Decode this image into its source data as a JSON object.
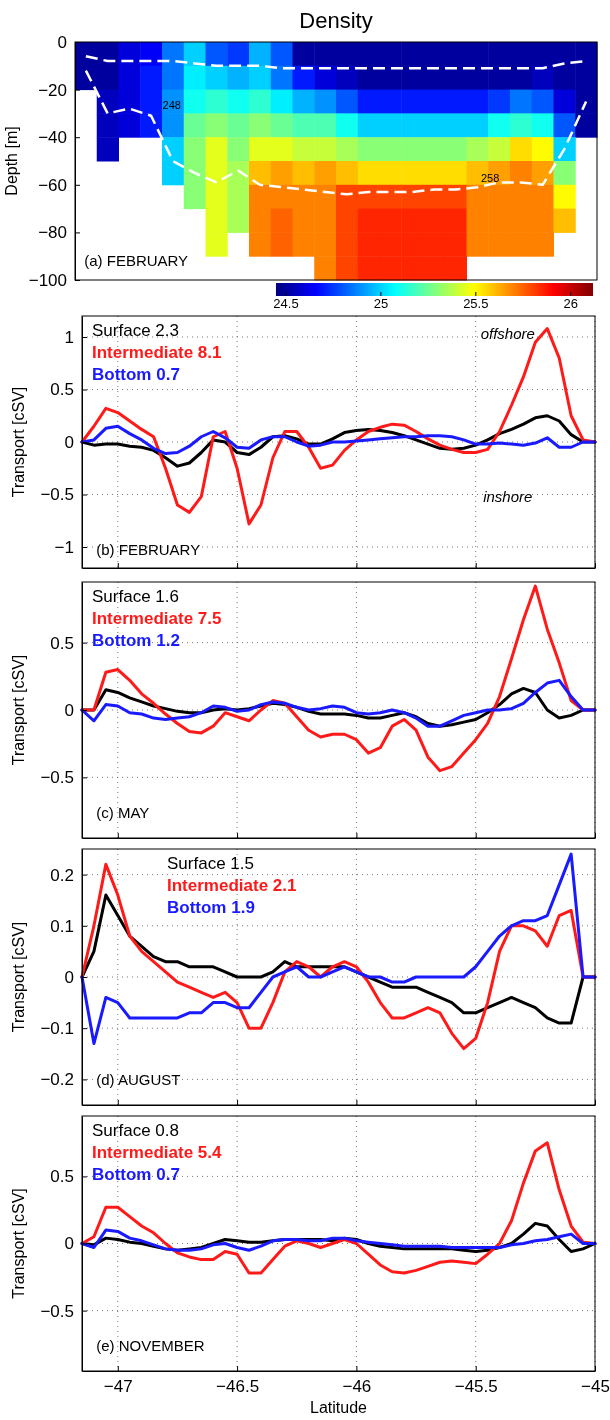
{
  "chart_data": [
    {
      "type": "heatmap",
      "title": "Density",
      "ylabel": "Depth [m]",
      "ylim": [
        -100,
        0
      ],
      "yticks": [
        -100,
        -80,
        -60,
        -40,
        -20,
        0
      ],
      "tick_labels": "y",
      "clim": [
        24.45,
        26.12
      ],
      "cticks": [
        24.5,
        25,
        25.5,
        26
      ],
      "categories": [
        null,
        null,
        null,
        null,
        null,
        null,
        null,
        null,
        null,
        null,
        null,
        null,
        null,
        null,
        null,
        null,
        null,
        null,
        null,
        null,
        null,
        null,
        null,
        null
      ],
      "cells": [
        [
          24.5,
          24.5,
          24.6,
          24.65,
          24.85,
          25.0,
          24.8,
          24.75,
          24.95,
          24.8,
          24.5,
          24.5,
          24.5,
          24.5,
          24.5,
          24.5,
          24.5,
          24.5,
          24.5,
          24.5,
          24.5,
          24.5,
          24.5,
          24.5
        ],
        [
          24.5,
          24.5,
          24.6,
          24.7,
          24.85,
          25.05,
          25.0,
          24.95,
          25.0,
          24.85,
          24.7,
          24.6,
          24.55,
          24.5,
          24.5,
          24.5,
          24.5,
          24.5,
          24.5,
          24.5,
          24.5,
          24.55,
          24.5,
          24.5
        ],
        [
          null,
          24.55,
          24.6,
          24.7,
          24.9,
          25.1,
          25.15,
          25.1,
          25.15,
          25.05,
          24.95,
          24.9,
          24.8,
          24.7,
          24.7,
          24.7,
          24.7,
          24.7,
          24.7,
          24.75,
          24.85,
          24.8,
          24.6,
          24.5
        ],
        [
          null,
          24.55,
          24.6,
          24.7,
          24.9,
          25.25,
          25.3,
          25.25,
          25.3,
          25.25,
          25.2,
          25.2,
          25.1,
          25.0,
          25.0,
          25.0,
          25.0,
          25.0,
          25.0,
          25.1,
          25.15,
          25.1,
          24.8,
          24.5
        ],
        [
          null,
          24.55,
          null,
          null,
          25.0,
          25.3,
          25.45,
          25.3,
          25.45,
          25.45,
          25.4,
          25.4,
          25.35,
          25.3,
          25.3,
          25.3,
          25.3,
          25.3,
          25.35,
          25.4,
          25.55,
          25.5,
          25.0,
          null
        ],
        [
          null,
          null,
          null,
          null,
          25.0,
          25.3,
          25.45,
          25.35,
          25.6,
          25.65,
          25.6,
          25.65,
          25.6,
          25.55,
          25.55,
          25.55,
          25.55,
          25.55,
          25.6,
          25.65,
          25.7,
          25.65,
          25.3,
          null
        ],
        [
          null,
          null,
          null,
          null,
          null,
          25.3,
          25.45,
          25.35,
          25.7,
          25.7,
          25.7,
          25.7,
          25.8,
          25.8,
          25.8,
          25.8,
          25.8,
          25.8,
          25.7,
          25.7,
          25.7,
          25.7,
          25.5,
          null
        ],
        [
          null,
          null,
          null,
          null,
          null,
          null,
          25.45,
          25.35,
          25.7,
          25.75,
          25.7,
          25.7,
          25.8,
          25.85,
          25.85,
          25.85,
          25.85,
          25.85,
          25.7,
          25.7,
          25.7,
          25.7,
          25.6,
          null
        ],
        [
          null,
          null,
          null,
          null,
          null,
          null,
          25.45,
          null,
          25.7,
          25.75,
          25.7,
          25.7,
          25.8,
          25.85,
          25.85,
          25.85,
          25.85,
          25.85,
          25.7,
          25.7,
          25.7,
          25.7,
          null,
          null
        ],
        [
          null,
          null,
          null,
          null,
          null,
          null,
          null,
          null,
          null,
          null,
          null,
          25.7,
          25.8,
          25.85,
          25.85,
          25.85,
          25.85,
          25.85,
          null,
          null,
          null,
          null,
          null,
          null
        ]
      ],
      "series": [
        {
          "type": "line",
          "color": "#ffffff",
          "line_style": "dashed",
          "values": [
            -6,
            -8,
            -8,
            -8,
            -8,
            -9,
            -10,
            -10,
            -10,
            -11,
            -11,
            -11,
            -11,
            -11,
            -11,
            -11,
            -11,
            -11,
            -11,
            -11,
            -11,
            -11,
            -9,
            -8
          ]
        },
        {
          "type": "line",
          "color": "#ffffff",
          "line_style": "dashed",
          "values": [
            -12,
            -30,
            -28,
            -31,
            -50,
            -55,
            -59,
            -54,
            -60,
            -61,
            -62,
            -63,
            -64,
            -63,
            -63,
            -63,
            -62,
            -62,
            -61,
            -59,
            -59,
            -60,
            -45,
            -25
          ]
        }
      ],
      "annotations": [
        "248",
        "258",
        "(a) FEBRUARY"
      ]
    },
    {
      "type": "line",
      "ylabel": "Transport [cSV]",
      "xlim": [
        -47.15,
        -45
      ],
      "xticks": [
        -47,
        -46.5,
        -46,
        -45.5,
        -45
      ],
      "ylim": [
        -1.2,
        1.2
      ],
      "yticks": [
        -1,
        -0.5,
        0,
        0.5,
        1
      ],
      "tick_labels": "y",
      "grid": true,
      "legend": "top left",
      "x": [
        -47.15,
        -47.1,
        -47.05,
        -47,
        -46.95,
        -46.9,
        -46.85,
        -46.8,
        -46.75,
        -46.7,
        -46.65,
        -46.6,
        -46.55,
        -46.5,
        -46.45,
        -46.4,
        -46.35,
        -46.3,
        -46.25,
        -46.2,
        -46.15,
        -46.1,
        -46.05,
        -46,
        -45.95,
        -45.9,
        -45.85,
        -45.8,
        -45.75,
        -45.7,
        -45.65,
        -45.6,
        -45.55,
        -45.5,
        -45.45,
        -45.4,
        -45.35,
        -45.3,
        -45.25,
        -45.2,
        -45.15,
        -45.1,
        -45.05,
        -45
      ],
      "series": [
        {
          "name": "Surface 2.3",
          "color": "#000000",
          "values": [
            0,
            -0.03,
            -0.02,
            -0.02,
            -0.04,
            -0.05,
            -0.08,
            -0.15,
            -0.23,
            -0.2,
            -0.1,
            0.02,
            0,
            -0.1,
            -0.12,
            -0.05,
            0.05,
            0.06,
            0.03,
            -0.02,
            -0.02,
            0.03,
            0.09,
            0.11,
            0.12,
            0.11,
            0.09,
            0.06,
            0.02,
            -0.02,
            -0.06,
            -0.07,
            -0.06,
            -0.03,
            0.02,
            0.08,
            0.12,
            0.17,
            0.23,
            0.25,
            0.2,
            0.07,
            0,
            0
          ]
        },
        {
          "name": "Intermediate 8.1",
          "color": "#ff1a1a",
          "values": [
            0,
            0.15,
            0.32,
            0.28,
            0.2,
            0.12,
            0.05,
            -0.25,
            -0.6,
            -0.67,
            -0.52,
            0.05,
            0.1,
            -0.25,
            -0.78,
            -0.6,
            -0.15,
            0.1,
            0.1,
            -0.05,
            -0.25,
            -0.22,
            -0.08,
            0.02,
            0.1,
            0.14,
            0.17,
            0.16,
            0.1,
            0.03,
            -0.03,
            -0.07,
            -0.1,
            -0.1,
            -0.07,
            0.1,
            0.35,
            0.62,
            0.95,
            1.08,
            0.8,
            0.25,
            0.02,
            0
          ]
        },
        {
          "name": "Bottom 0.7",
          "color": "#1a1aff",
          "values": [
            0,
            0.02,
            0.13,
            0.15,
            0.08,
            0.02,
            -0.06,
            -0.11,
            -0.1,
            -0.04,
            0.05,
            0.1,
            0.04,
            -0.05,
            -0.06,
            0.02,
            0.05,
            0.05,
            0,
            -0.04,
            -0.03,
            0,
            0,
            0.01,
            0.02,
            0.03,
            0.04,
            0.05,
            0.05,
            0.06,
            0.06,
            0.05,
            0.02,
            -0.02,
            -0.02,
            -0.01,
            -0.02,
            -0.03,
            -0.01,
            0.04,
            -0.05,
            -0.05,
            0,
            0
          ]
        }
      ],
      "annotations": [
        "(b) FEBRUARY",
        "offshore",
        "inshore"
      ]
    },
    {
      "type": "line",
      "ylabel": "Transport [cSV]",
      "xlim": [
        -47.15,
        -45
      ],
      "xticks": [
        -47,
        -46.5,
        -46,
        -45.5,
        -45
      ],
      "ylim": [
        -0.95,
        0.95
      ],
      "yticks": [
        -0.5,
        0,
        0.5
      ],
      "tick_labels": "y",
      "grid": true,
      "legend": "top left",
      "x": [
        -47.15,
        -47.1,
        -47.05,
        -47,
        -46.95,
        -46.9,
        -46.85,
        -46.8,
        -46.75,
        -46.7,
        -46.65,
        -46.6,
        -46.55,
        -46.5,
        -46.45,
        -46.4,
        -46.35,
        -46.3,
        -46.25,
        -46.2,
        -46.15,
        -46.1,
        -46.05,
        -46,
        -45.95,
        -45.9,
        -45.85,
        -45.8,
        -45.75,
        -45.7,
        -45.65,
        -45.6,
        -45.55,
        -45.5,
        -45.45,
        -45.4,
        -45.35,
        -45.3,
        -45.25,
        -45.2,
        -45.15,
        -45.1,
        -45.05,
        -45
      ],
      "series": [
        {
          "name": "Surface 1.6",
          "color": "#000000",
          "values": [
            0,
            0,
            0.15,
            0.13,
            0.09,
            0.06,
            0.03,
            0.01,
            -0.01,
            -0.02,
            -0.02,
            0,
            0.01,
            0,
            0.01,
            0.03,
            0.05,
            0.04,
            0.02,
            -0.01,
            -0.03,
            -0.03,
            -0.03,
            -0.04,
            -0.06,
            -0.06,
            -0.04,
            -0.02,
            -0.05,
            -0.1,
            -0.12,
            -0.11,
            -0.09,
            -0.07,
            -0.02,
            0.04,
            0.12,
            0.16,
            0.13,
            0,
            -0.06,
            -0.04,
            0,
            0
          ]
        },
        {
          "name": "Intermediate 7.5",
          "color": "#ff1a1a",
          "values": [
            0,
            0,
            0.28,
            0.3,
            0.22,
            0.12,
            0.05,
            -0.03,
            -0.1,
            -0.16,
            -0.17,
            -0.12,
            -0.02,
            -0.05,
            -0.08,
            0,
            0.07,
            0.05,
            -0.05,
            -0.15,
            -0.2,
            -0.18,
            -0.18,
            -0.22,
            -0.32,
            -0.28,
            -0.12,
            -0.07,
            -0.15,
            -0.35,
            -0.45,
            -0.42,
            -0.32,
            -0.22,
            -0.1,
            0.1,
            0.38,
            0.67,
            0.92,
            0.6,
            0.35,
            0.07,
            0,
            0
          ]
        },
        {
          "name": "Bottom 1.2",
          "color": "#1a1aff",
          "values": [
            0,
            -0.08,
            0.04,
            0.03,
            -0.02,
            -0.03,
            -0.06,
            -0.07,
            -0.06,
            -0.05,
            -0.02,
            0.03,
            0.02,
            -0.01,
            0,
            0.04,
            0.06,
            0.05,
            0.02,
            0,
            0.01,
            0.03,
            0.02,
            -0.02,
            -0.03,
            -0.02,
            0,
            -0.02,
            -0.06,
            -0.12,
            -0.12,
            -0.08,
            -0.04,
            -0.02,
            0,
            0,
            0.01,
            0.05,
            0.13,
            0.2,
            0.22,
            0.1,
            0,
            0
          ]
        }
      ],
      "annotations": [
        "(c) MAY"
      ]
    },
    {
      "type": "line",
      "ylabel": "Transport [cSV]",
      "xlim": [
        -47.15,
        -45
      ],
      "xticks": [
        -47,
        -46.5,
        -46,
        -45.5,
        -45
      ],
      "ylim": [
        -0.25,
        0.25
      ],
      "yticks": [
        -0.2,
        -0.1,
        0,
        0.1,
        0.2
      ],
      "tick_labels": "y",
      "grid": true,
      "legend": "top left",
      "x": [
        -47.15,
        -47.1,
        -47.05,
        -47,
        -46.95,
        -46.9,
        -46.85,
        -46.8,
        -46.75,
        -46.7,
        -46.65,
        -46.6,
        -46.55,
        -46.5,
        -46.45,
        -46.4,
        -46.35,
        -46.3,
        -46.25,
        -46.2,
        -46.15,
        -46.1,
        -46.05,
        -46,
        -45.95,
        -45.9,
        -45.85,
        -45.8,
        -45.75,
        -45.7,
        -45.65,
        -45.6,
        -45.55,
        -45.5,
        -45.45,
        -45.4,
        -45.35,
        -45.3,
        -45.25,
        -45.2,
        -45.15,
        -45.1,
        -45.05,
        -45
      ],
      "series": [
        {
          "name": "Surface 1.5",
          "color": "#000000",
          "values": [
            0,
            0.05,
            0.16,
            0.12,
            0.08,
            0.06,
            0.04,
            0.03,
            0.03,
            0.02,
            0.02,
            0.02,
            0.01,
            0,
            0,
            0,
            0.01,
            0.03,
            0.02,
            0.02,
            0.02,
            0.02,
            0.02,
            0.01,
            0,
            -0.01,
            -0.02,
            -0.02,
            -0.02,
            -0.03,
            -0.04,
            -0.05,
            -0.07,
            -0.07,
            -0.06,
            -0.05,
            -0.04,
            -0.05,
            -0.06,
            -0.08,
            -0.09,
            -0.09,
            0,
            0
          ]
        },
        {
          "name": "Intermediate 2.1",
          "color": "#ff1a1a",
          "values": [
            0,
            0.1,
            0.22,
            0.16,
            0.08,
            0.05,
            0.03,
            0.01,
            -0.01,
            -0.02,
            -0.03,
            -0.04,
            -0.03,
            -0.05,
            -0.1,
            -0.1,
            -0.05,
            0.01,
            0.03,
            0.02,
            0,
            0.02,
            0.03,
            0.02,
            -0.01,
            -0.05,
            -0.08,
            -0.08,
            -0.07,
            -0.06,
            -0.07,
            -0.11,
            -0.14,
            -0.12,
            -0.05,
            0.05,
            0.1,
            0.1,
            0.09,
            0.06,
            0.12,
            0.13,
            0,
            0
          ]
        },
        {
          "name": "Bottom 1.9",
          "color": "#1a1aff",
          "values": [
            0,
            -0.13,
            -0.04,
            -0.05,
            -0.08,
            -0.08,
            -0.08,
            -0.08,
            -0.08,
            -0.07,
            -0.07,
            -0.05,
            -0.05,
            -0.06,
            -0.06,
            -0.03,
            0,
            0.01,
            0.02,
            0,
            0,
            0.01,
            0.02,
            0.01,
            0,
            0,
            -0.01,
            -0.01,
            0,
            0,
            0,
            0,
            0,
            0.02,
            0.05,
            0.08,
            0.1,
            0.11,
            0.11,
            0.12,
            0.18,
            0.24,
            0,
            0
          ]
        }
      ],
      "annotations": [
        "(d) AUGUST"
      ]
    },
    {
      "type": "line",
      "xlabel": "Latitude",
      "ylabel": "Transport [cSV]",
      "xlim": [
        -47.15,
        -45
      ],
      "xticks": [
        -47,
        -46.5,
        -46,
        -45.5,
        -45
      ],
      "ylim": [
        -0.95,
        0.95
      ],
      "yticks": [
        -0.5,
        0,
        0.5
      ],
      "grid": true,
      "legend": "top left",
      "x": [
        -47.15,
        -47.1,
        -47.05,
        -47,
        -46.95,
        -46.9,
        -46.85,
        -46.8,
        -46.75,
        -46.7,
        -46.65,
        -46.6,
        -46.55,
        -46.5,
        -46.45,
        -46.4,
        -46.35,
        -46.3,
        -46.25,
        -46.2,
        -46.15,
        -46.1,
        -46.05,
        -46,
        -45.95,
        -45.9,
        -45.85,
        -45.8,
        -45.75,
        -45.7,
        -45.65,
        -45.6,
        -45.55,
        -45.5,
        -45.45,
        -45.4,
        -45.35,
        -45.3,
        -45.25,
        -45.2,
        -45.15,
        -45.1,
        -45.05,
        -45
      ],
      "series": [
        {
          "name": "Surface 0.8",
          "color": "#000000",
          "values": [
            0,
            -0.01,
            0.04,
            0.03,
            0.01,
            0,
            -0.02,
            -0.04,
            -0.05,
            -0.04,
            -0.03,
            0,
            0.03,
            0.02,
            0.01,
            0.01,
            0.02,
            0.03,
            0.03,
            0.03,
            0.03,
            0.02,
            0.04,
            0.03,
            0,
            -0.02,
            -0.03,
            -0.04,
            -0.04,
            -0.04,
            -0.04,
            -0.04,
            -0.05,
            -0.06,
            -0.05,
            -0.03,
            0,
            0.07,
            0.15,
            0.13,
            0.03,
            -0.06,
            -0.04,
            0
          ]
        },
        {
          "name": "Intermediate 5.4",
          "color": "#ff1a1a",
          "values": [
            0,
            0.05,
            0.27,
            0.27,
            0.2,
            0.13,
            0.08,
            0,
            -0.07,
            -0.1,
            -0.12,
            -0.12,
            -0.06,
            -0.08,
            -0.22,
            -0.22,
            -0.12,
            -0.02,
            0.02,
            0,
            -0.03,
            0,
            0.03,
            0,
            -0.08,
            -0.16,
            -0.21,
            -0.22,
            -0.2,
            -0.17,
            -0.14,
            -0.13,
            -0.14,
            -0.15,
            -0.08,
            0,
            0.17,
            0.45,
            0.69,
            0.75,
            0.4,
            0.13,
            0.01,
            0
          ]
        },
        {
          "name": "Bottom 0.7",
          "color": "#1a1aff",
          "values": [
            0,
            -0.03,
            0.1,
            0.09,
            0.04,
            0.02,
            -0.01,
            -0.04,
            -0.05,
            -0.05,
            -0.04,
            -0.01,
            0,
            -0.03,
            -0.05,
            -0.02,
            0.02,
            0.03,
            0.03,
            0.02,
            0.02,
            0.04,
            0.04,
            0.02,
            0.01,
            0,
            -0.01,
            -0.02,
            -0.02,
            -0.02,
            -0.02,
            -0.03,
            -0.03,
            -0.03,
            -0.03,
            -0.03,
            -0.01,
            0,
            0.02,
            0.03,
            0.05,
            0.07,
            0,
            0
          ]
        }
      ],
      "annotations": [
        "(e) NOVEMBER"
      ]
    }
  ]
}
